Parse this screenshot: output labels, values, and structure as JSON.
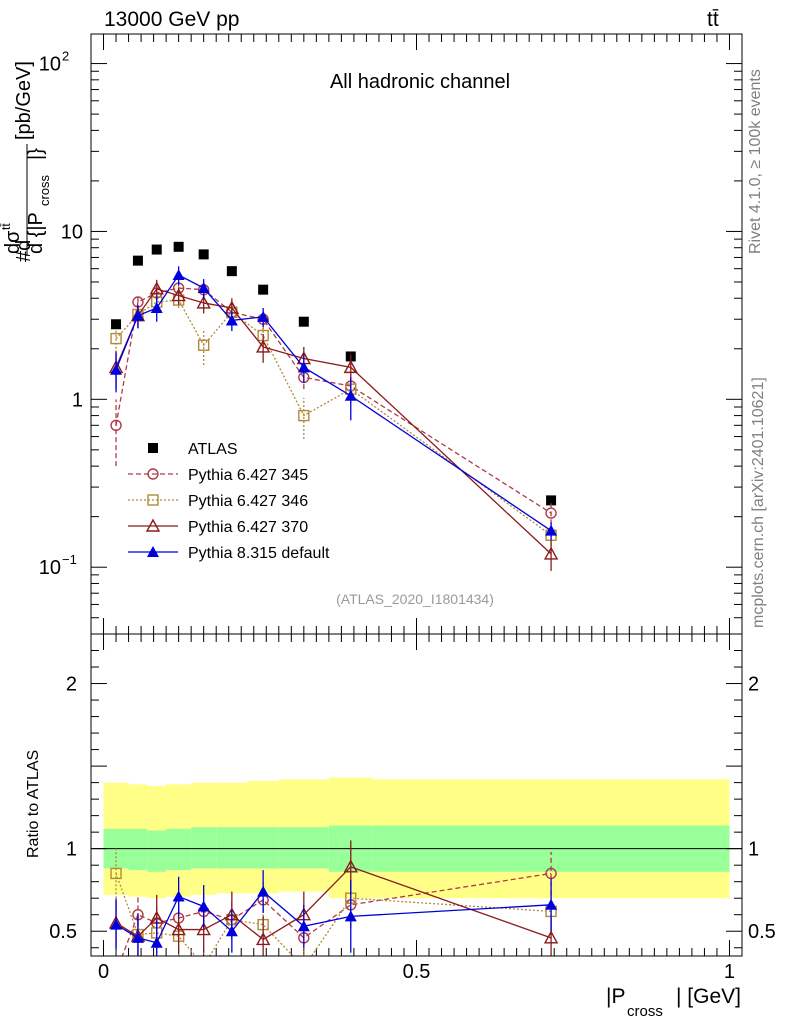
{
  "header": {
    "energy_label": "13000 GeV pp",
    "process_label": "tt̄",
    "channel_label": "All hadronic channel",
    "analysis_id": "(ATLAS_2020_I1801434)",
    "side_left": "Rivet 4.1.0, ≥ 100k events",
    "side_right": "mcplots.cern.ch [arXiv:2401.10621]"
  },
  "chart_data": [
    {
      "type": "scatter",
      "name": "main",
      "yscale": "log",
      "ylim": [
        0.04,
        150
      ],
      "xlim": [
        -0.02,
        1.02
      ],
      "ylabel": "#d dσ^tt̄ / d {|P_cross|} [pb/GeV]",
      "yticks": [
        {
          "value": 0.1,
          "base": "10",
          "exp": "−1"
        },
        {
          "value": 1,
          "base": "1",
          "exp": ""
        },
        {
          "value": 10,
          "base": "10",
          "exp": ""
        },
        {
          "value": 100,
          "base": "10",
          "exp": "2"
        }
      ],
      "x": [
        0.02,
        0.055,
        0.085,
        0.12,
        0.16,
        0.205,
        0.255,
        0.32,
        0.395,
        0.715
      ],
      "series": [
        {
          "name": "ATLAS",
          "color": "#000000",
          "marker": "square-filled",
          "line": "none",
          "values": [
            2.8,
            6.7,
            7.8,
            8.1,
            7.3,
            5.8,
            4.5,
            2.9,
            1.8,
            0.25
          ],
          "err": [
            0.1,
            0.2,
            0.2,
            0.2,
            0.2,
            0.2,
            0.15,
            0.1,
            0.08,
            0.01
          ]
        },
        {
          "name": "Pythia 6.427 345",
          "color": "#b03a48",
          "marker": "circle-open",
          "line": "dashed",
          "values": [
            0.7,
            3.8,
            4.3,
            4.6,
            4.5,
            3.3,
            3.0,
            1.35,
            1.2,
            0.21
          ],
          "err": [
            0.3,
            0.4,
            0.4,
            0.4,
            0.4,
            0.4,
            0.4,
            0.2,
            0.2,
            0.03
          ]
        },
        {
          "name": "Pythia 6.427 346",
          "color": "#b08a3a",
          "marker": "square-open",
          "line": "dotted",
          "values": [
            2.3,
            3.2,
            3.8,
            3.9,
            2.1,
            3.3,
            2.4,
            0.8,
            1.15,
            0.155
          ],
          "err": [
            0.3,
            0.4,
            0.4,
            0.4,
            0.5,
            0.4,
            0.4,
            0.22,
            0.2,
            0.02
          ]
        },
        {
          "name": "Pythia 6.427 370",
          "color": "#8b1a1a",
          "marker": "triangle-open",
          "line": "solid",
          "values": [
            1.55,
            3.15,
            4.55,
            4.15,
            3.75,
            3.5,
            2.05,
            1.75,
            1.55,
            0.12
          ],
          "err": [
            0.4,
            0.5,
            0.6,
            0.5,
            0.5,
            0.5,
            0.4,
            0.3,
            0.3,
            0.025
          ]
        },
        {
          "name": "Pythia 8.315 default",
          "color": "#0000dd",
          "marker": "triangle-filled",
          "line": "solid",
          "values": [
            1.5,
            3.15,
            3.5,
            5.5,
            4.6,
            2.95,
            3.1,
            1.55,
            1.05,
            0.165
          ],
          "err": [
            0.4,
            0.5,
            0.6,
            0.7,
            0.6,
            0.4,
            0.4,
            0.3,
            0.3,
            0.02
          ]
        }
      ]
    },
    {
      "type": "line",
      "name": "ratio",
      "ylim": [
        0.35,
        2.3
      ],
      "xlim": [
        -0.02,
        1.02
      ],
      "ylabel": "Ratio to ATLAS",
      "xlabel_base": "|P",
      "xlabel_sub": "cross",
      "xlabel_tail": "| [GeV]",
      "yticks": [
        {
          "value": 0.5,
          "label": "0.5"
        },
        {
          "value": 1,
          "label": "1"
        },
        {
          "value": 2,
          "label": "2"
        }
      ],
      "xticks": [
        {
          "value": 0,
          "label": "0"
        },
        {
          "value": 0.5,
          "label": "0.5"
        },
        {
          "value": 1,
          "label": "1"
        }
      ],
      "bands": {
        "edges": [
          0,
          0.04,
          0.07,
          0.1,
          0.14,
          0.18,
          0.23,
          0.28,
          0.36,
          0.43,
          1.0
        ],
        "yellow": [
          [
            0.72,
            1.4
          ],
          [
            0.71,
            1.39
          ],
          [
            0.7,
            1.38
          ],
          [
            0.71,
            1.39
          ],
          [
            0.72,
            1.4
          ],
          [
            0.73,
            1.4
          ],
          [
            0.73,
            1.41
          ],
          [
            0.74,
            1.42
          ],
          [
            0.7,
            1.43
          ],
          [
            0.7,
            1.42
          ]
        ],
        "green": [
          [
            0.88,
            1.12
          ],
          [
            0.87,
            1.12
          ],
          [
            0.86,
            1.11
          ],
          [
            0.87,
            1.12
          ],
          [
            0.88,
            1.13
          ],
          [
            0.88,
            1.13
          ],
          [
            0.88,
            1.13
          ],
          [
            0.88,
            1.13
          ],
          [
            0.86,
            1.14
          ],
          [
            0.86,
            1.14
          ]
        ],
        "yellow_color": "#ffff88",
        "green_color": "#99ff99"
      },
      "x": [
        0.02,
        0.055,
        0.085,
        0.12,
        0.16,
        0.205,
        0.255,
        0.32,
        0.395,
        0.715
      ],
      "series": [
        {
          "name": "Pythia 6.427 345",
          "color": "#b03a48",
          "marker": "circle-open",
          "line": "dashed",
          "values": [
            0.25,
            0.6,
            0.55,
            0.58,
            0.62,
            0.57,
            0.69,
            0.46,
            0.66,
            0.85
          ],
          "err": [
            0.1,
            0.12,
            0.12,
            0.12,
            0.12,
            0.12,
            0.12,
            0.12,
            0.14,
            0.13
          ]
        },
        {
          "name": "Pythia 6.427 346",
          "color": "#b08a3a",
          "marker": "square-open",
          "line": "dotted",
          "values": [
            0.85,
            0.48,
            0.49,
            0.47,
            0.29,
            0.57,
            0.54,
            0.28,
            0.7,
            0.62
          ],
          "err": [
            0.15,
            0.12,
            0.12,
            0.12,
            0.12,
            0.12,
            0.12,
            0.1,
            0.14,
            0.12
          ]
        },
        {
          "name": "Pythia 6.427 370",
          "color": "#8b1a1a",
          "marker": "triangle-open",
          "line": "solid",
          "values": [
            0.55,
            0.47,
            0.58,
            0.51,
            0.51,
            0.6,
            0.45,
            0.6,
            0.89,
            0.46
          ],
          "err": [
            0.15,
            0.14,
            0.14,
            0.14,
            0.14,
            0.14,
            0.14,
            0.14,
            0.16,
            0.12
          ]
        },
        {
          "name": "Pythia 8.315 default",
          "color": "#0000dd",
          "marker": "triangle-filled",
          "line": "solid",
          "values": [
            0.54,
            0.46,
            0.43,
            0.71,
            0.65,
            0.5,
            0.74,
            0.53,
            0.59,
            0.66
          ],
          "err": [
            0.15,
            0.14,
            0.14,
            0.12,
            0.13,
            0.13,
            0.13,
            0.13,
            0.22,
            0.16
          ]
        }
      ]
    }
  ]
}
